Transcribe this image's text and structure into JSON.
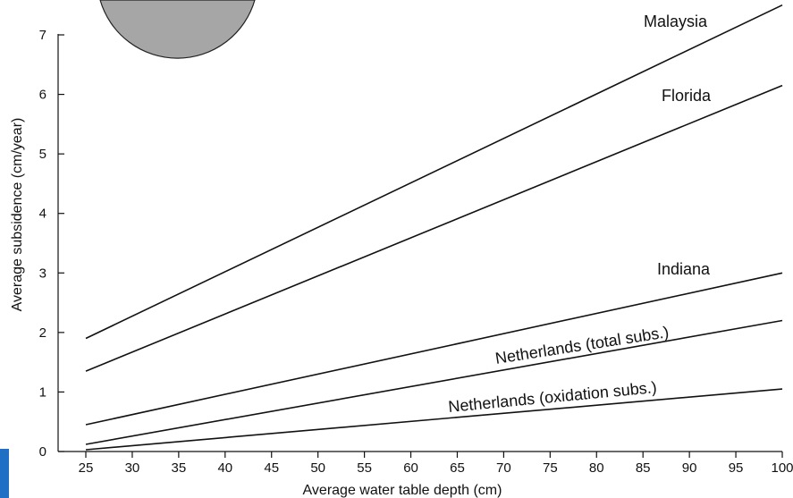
{
  "chart_data": {
    "type": "line",
    "xlabel": "Average water table depth (cm)",
    "ylabel": "Average subsidence (cm/year)",
    "xlim": [
      25,
      100
    ],
    "ylim": [
      0,
      7
    ],
    "xticks": [
      25,
      30,
      35,
      40,
      45,
      50,
      55,
      60,
      65,
      70,
      75,
      80,
      85,
      90,
      95,
      100
    ],
    "yticks": [
      0,
      1,
      2,
      3,
      4,
      5,
      6,
      7
    ],
    "grid": false,
    "series": [
      {
        "name": "Malaysia",
        "x": [
          25,
          100
        ],
        "y": [
          1.9,
          7.5
        ]
      },
      {
        "name": "Florida",
        "x": [
          25,
          100
        ],
        "y": [
          1.35,
          6.15
        ]
      },
      {
        "name": "Indiana",
        "x": [
          25,
          100
        ],
        "y": [
          0.45,
          3.0
        ]
      },
      {
        "name": "Netherlands (total subs.)",
        "x": [
          25,
          100
        ],
        "y": [
          0.12,
          2.2
        ]
      },
      {
        "name": "Netherlands (oxidation subs.)",
        "x": [
          25,
          100
        ],
        "y": [
          0.03,
          1.05
        ]
      }
    ]
  },
  "colors": {
    "line": "#111111",
    "background": "#ffffff",
    "circle_fill": "#a6a6a6",
    "side_marker": "#1f6fc5"
  }
}
